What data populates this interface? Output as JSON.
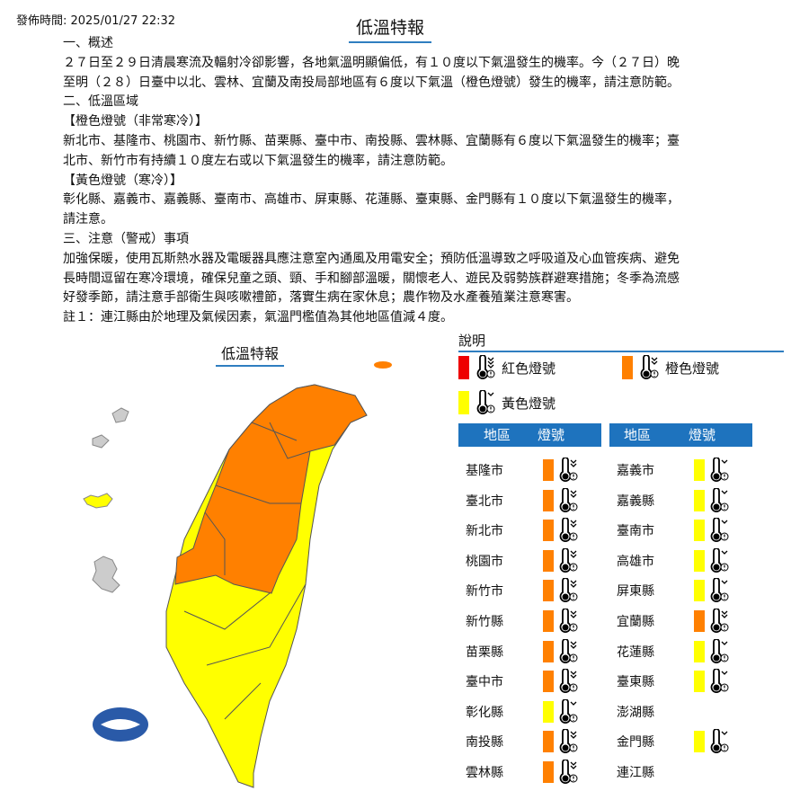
{
  "publish_time": "發佈時間: 2025/01/27 22:32",
  "title": "低溫特報",
  "body": [
    "一、概述",
    "２７日至２９日清晨寒流及輻射冷卻影響，各地氣溫明顯偏低，有１０度以下氣溫發生的機率。今（２７日）晚",
    "至明（２８）日臺中以北、雲林、宜蘭及南投局部地區有６度以下氣溫（橙色燈號）發生的機率，請注意防範。",
    "二、低溫區域",
    "【橙色燈號（非常寒冷）】",
    "新北市、基隆市、桃園市、新竹縣、苗栗縣、臺中市、南投縣、雲林縣、宜蘭縣有６度以下氣溫發生的機率；臺",
    "北市、新竹市有持續１０度左右或以下氣溫發生的機率，請注意防範。",
    "【黃色燈號（寒冷）】",
    "彰化縣、嘉義市、嘉義縣、臺南市、高雄市、屏東縣、花蓮縣、臺東縣、金門縣有１０度以下氣溫發生的機率，",
    "請注意。",
    "三、注意（警戒）事項",
    "加強保暖，使用瓦斯熱水器及電暖器具應注意室內通風及用電安全；預防低溫導致之呼吸道及心血管疾病、避免",
    "長時間逗留在寒冷環境，確保兒童之頭、頸、手和腳部溫暖，關懷老人、遊民及弱勢族群避寒措施；冬季為流感",
    "好發季節，請注意手部衛生與咳嗽禮節，落實生病在家休息；農作物及水產養殖業注意寒害。",
    "註１：連江縣由於地理及氣候因素，氣溫門檻值為其他地區值減４度。"
  ],
  "map_title": "低溫特報",
  "legend": {
    "heading": "說明",
    "items": [
      {
        "label": "紅色燈號",
        "color": "#ee0000",
        "level": 3
      },
      {
        "label": "橙色燈號",
        "color": "#ff8000",
        "level": 2
      },
      {
        "label": "黃色燈號",
        "color": "#ffff00",
        "level": 1
      }
    ]
  },
  "table_headers": {
    "region": "地區",
    "signal": "燈號"
  },
  "colors": {
    "orange": "#ff8000",
    "yellow": "#ffff00",
    "header": "#1e73be",
    "other": "#cccccc"
  },
  "regions_left": [
    {
      "name": "基隆市",
      "level": "orange"
    },
    {
      "name": "臺北市",
      "level": "orange"
    },
    {
      "name": "新北市",
      "level": "orange"
    },
    {
      "name": "桃園市",
      "level": "orange"
    },
    {
      "name": "新竹市",
      "level": "orange"
    },
    {
      "name": "新竹縣",
      "level": "orange"
    },
    {
      "name": "苗栗縣",
      "level": "orange"
    },
    {
      "name": "臺中市",
      "level": "orange"
    },
    {
      "name": "彰化縣",
      "level": "yellow"
    },
    {
      "name": "南投縣",
      "level": "orange"
    },
    {
      "name": "雲林縣",
      "level": "orange"
    }
  ],
  "regions_right": [
    {
      "name": "嘉義市",
      "level": "yellow"
    },
    {
      "name": "嘉義縣",
      "level": "yellow"
    },
    {
      "name": "臺南市",
      "level": "yellow"
    },
    {
      "name": "高雄市",
      "level": "yellow"
    },
    {
      "name": "屏東縣",
      "level": "yellow"
    },
    {
      "name": "宜蘭縣",
      "level": "orange"
    },
    {
      "name": "花蓮縣",
      "level": "yellow"
    },
    {
      "name": "臺東縣",
      "level": "yellow"
    },
    {
      "name": "澎湖縣",
      "level": ""
    },
    {
      "name": "金門縣",
      "level": "yellow"
    },
    {
      "name": "連江縣",
      "level": ""
    }
  ]
}
